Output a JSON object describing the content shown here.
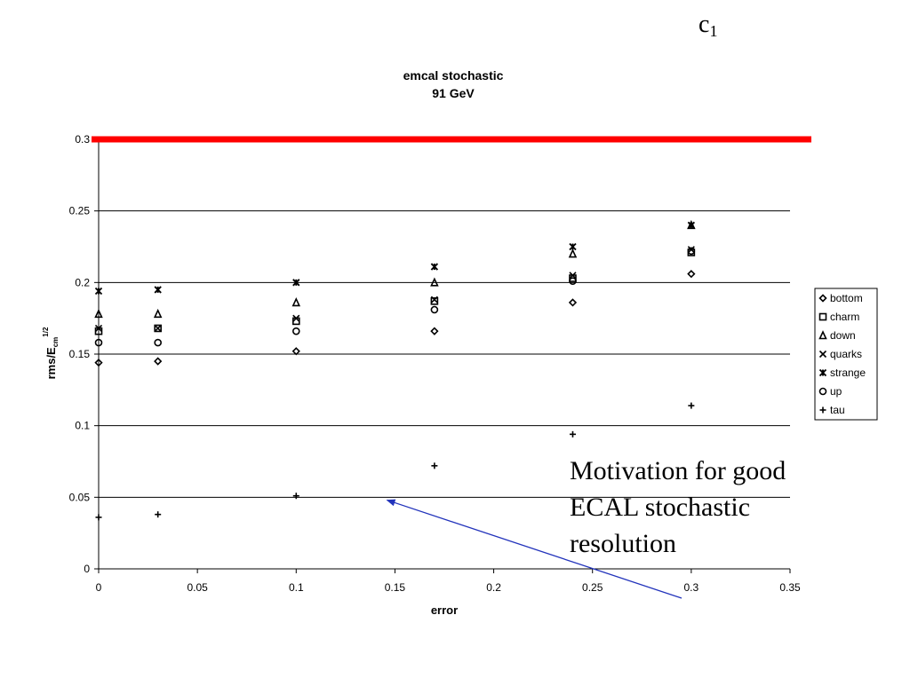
{
  "slide": {
    "corner_label": "c",
    "corner_sub": "1",
    "annotation_lines": [
      "Motivation for good",
      "ECAL stochastic",
      "resolution"
    ]
  },
  "colors": {
    "reference_line": "#ff0000",
    "arrow": "#2233bb",
    "gridline": "#000000",
    "marker": "#000000"
  },
  "chart_data": {
    "type": "scatter",
    "title": [
      "emcal stochastic",
      "91 GeV"
    ],
    "xlabel": "error",
    "ylabel": "rms/E",
    "ylabel_sub": "cm",
    "ylabel_sup": "1/2",
    "xlim": [
      0,
      0.35
    ],
    "ylim": [
      0,
      0.3
    ],
    "xticks": [
      "0",
      "0.05",
      "0.1",
      "0.15",
      "0.2",
      "0.25",
      "0.3",
      "0.35"
    ],
    "yticks": [
      "0",
      "0.05",
      "0.1",
      "0.15",
      "0.2",
      "0.25",
      "0.3"
    ],
    "grid": "horizontal",
    "legend_position": "right",
    "x": [
      0,
      0.03,
      0.1,
      0.17,
      0.24,
      0.3
    ],
    "series": [
      {
        "name": "bottom",
        "marker": "diamond",
        "values": [
          0.144,
          0.145,
          0.152,
          0.166,
          0.186,
          0.206
        ]
      },
      {
        "name": "charm",
        "marker": "square",
        "values": [
          0.166,
          0.168,
          0.173,
          0.187,
          0.203,
          0.221
        ]
      },
      {
        "name": "down",
        "marker": "triangle",
        "values": [
          0.178,
          0.178,
          0.186,
          0.2,
          0.22,
          0.24
        ]
      },
      {
        "name": "quarks",
        "marker": "x",
        "values": [
          0.168,
          0.168,
          0.175,
          0.188,
          0.205,
          0.223
        ]
      },
      {
        "name": "strange",
        "marker": "star",
        "values": [
          0.194,
          0.195,
          0.2,
          0.211,
          0.225,
          0.24
        ]
      },
      {
        "name": "up",
        "marker": "circle",
        "values": [
          0.158,
          0.158,
          0.166,
          0.181,
          0.201,
          0.222
        ]
      },
      {
        "name": "tau",
        "marker": "plus",
        "values": [
          0.036,
          0.038,
          0.051,
          0.072,
          0.094,
          0.114
        ]
      }
    ],
    "reference_line": {
      "y": 0.3
    },
    "arrow_target": {
      "x": 0.146,
      "y": 0.048
    }
  }
}
